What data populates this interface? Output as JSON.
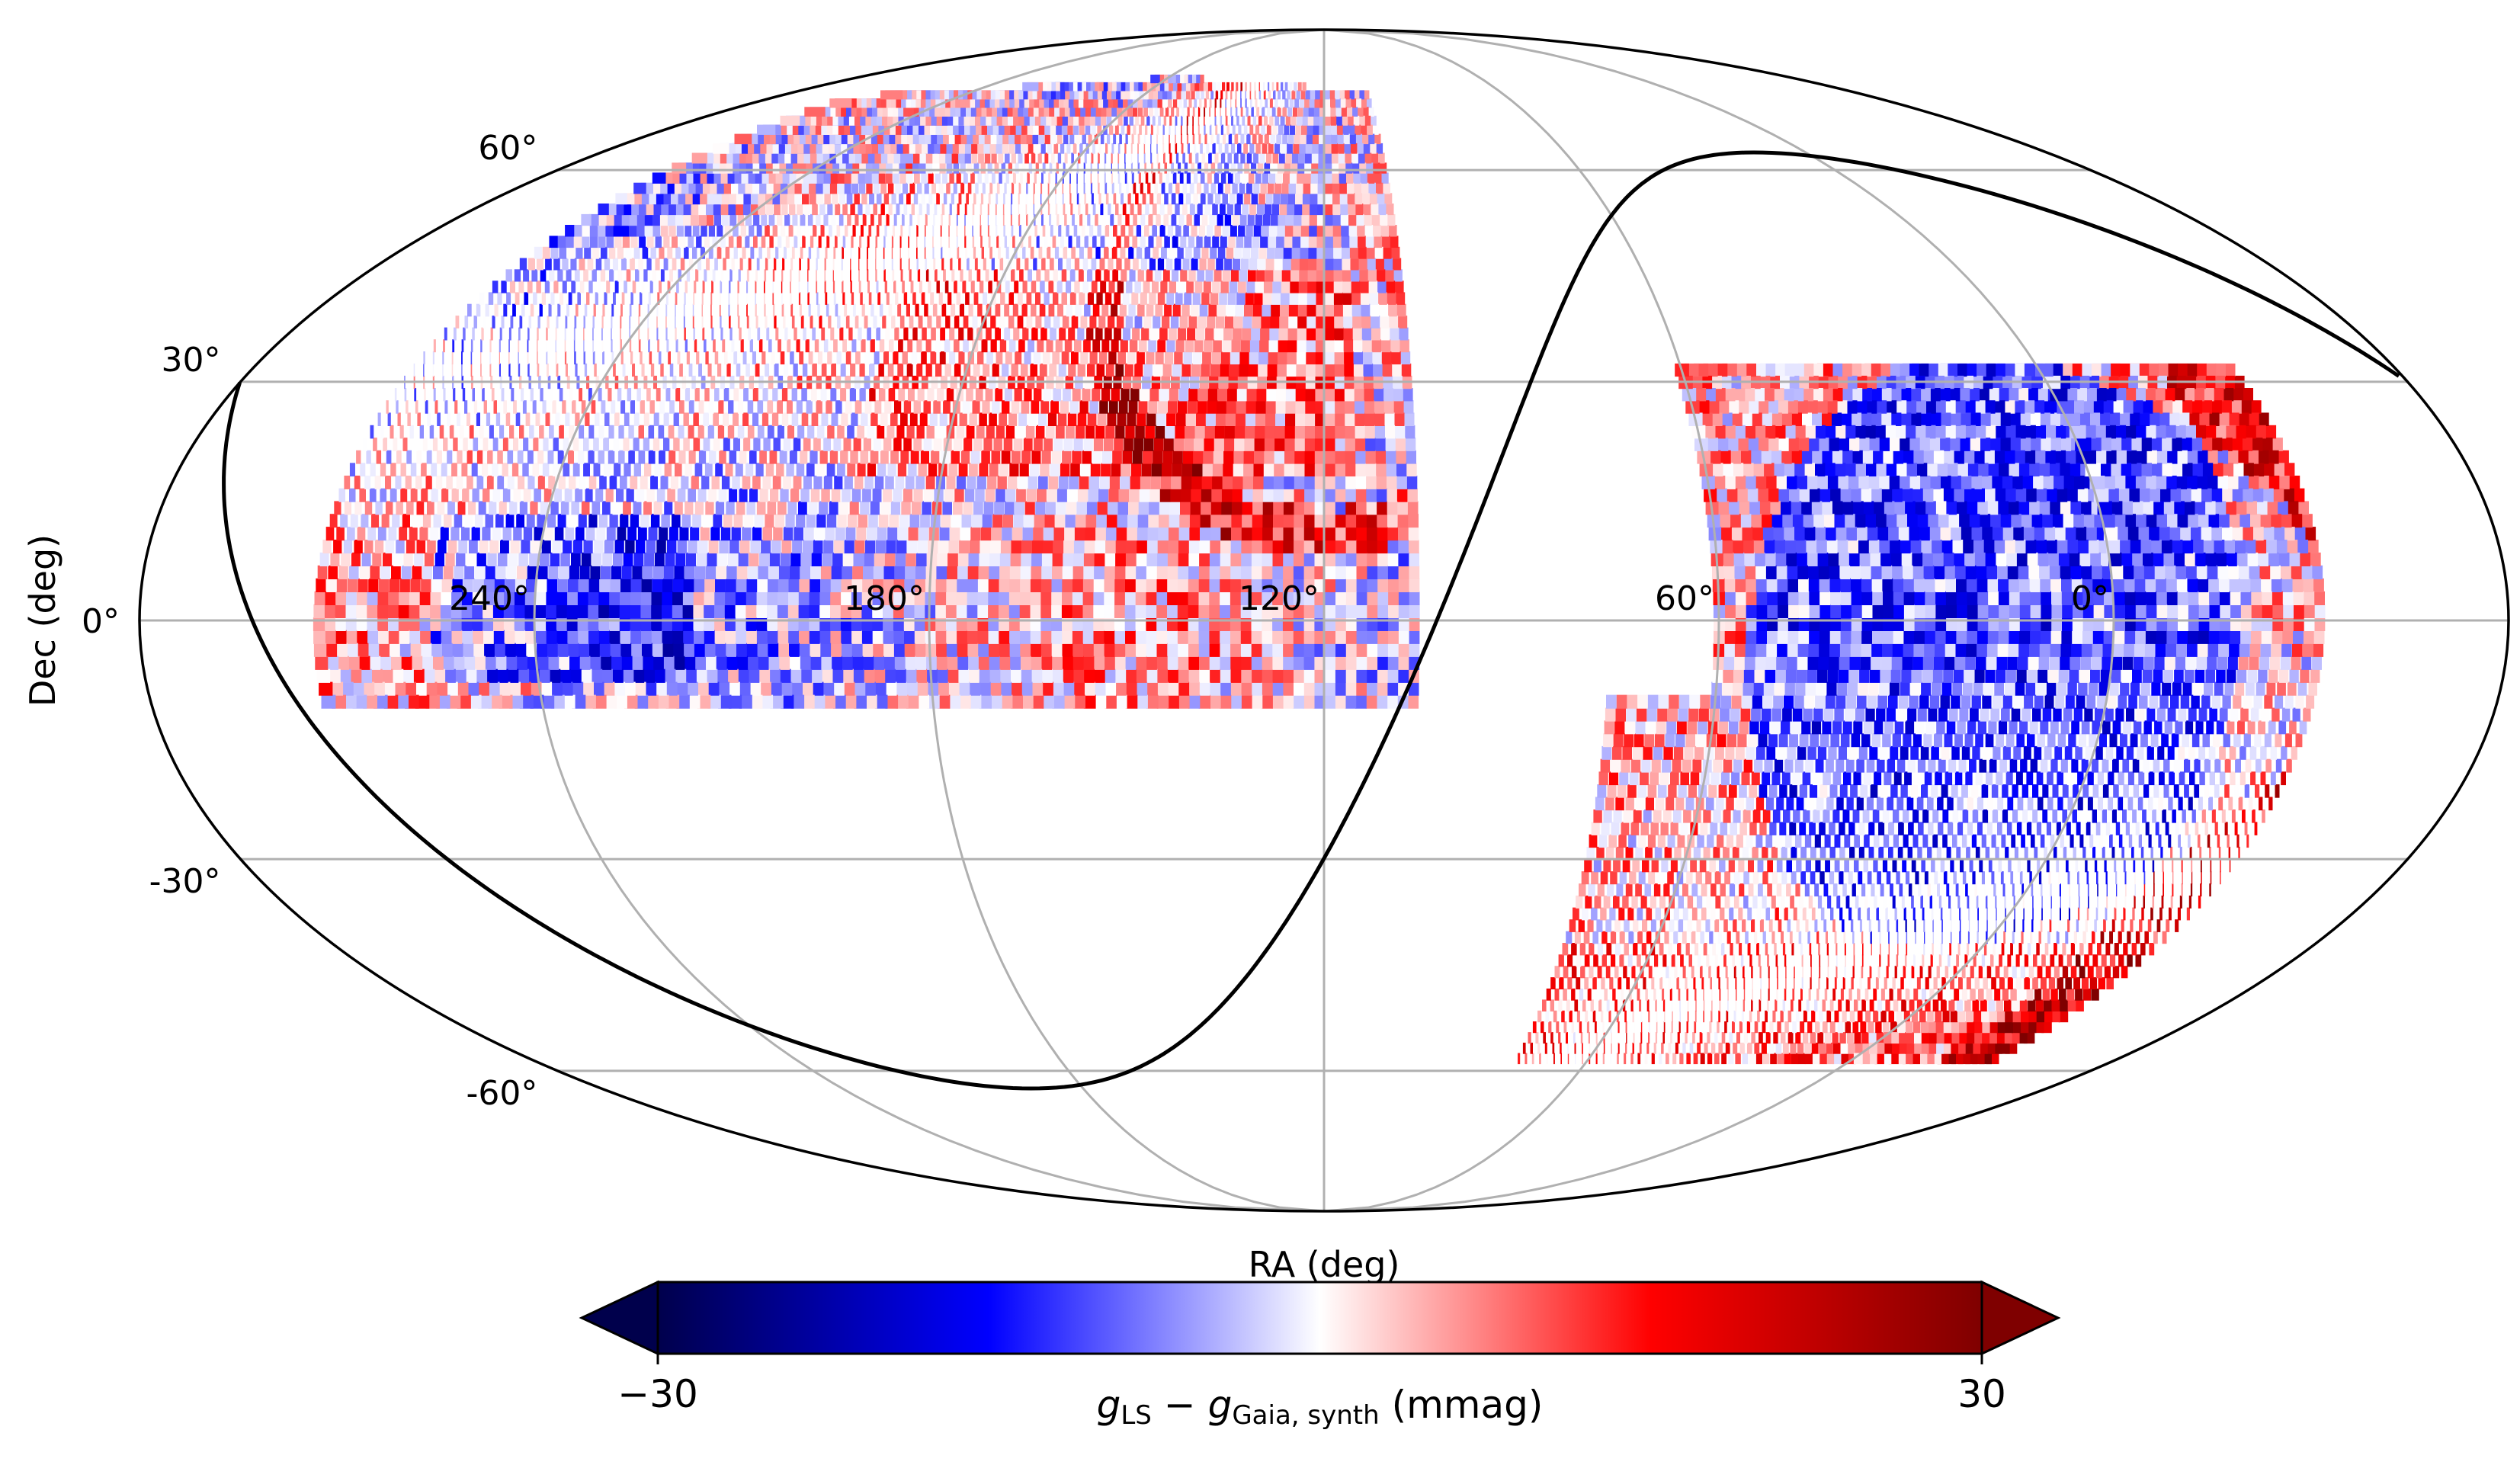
{
  "chart_data": {
    "type": "heatmap",
    "projection": "mollweide",
    "xlabel": "RA (deg)",
    "ylabel": "Dec (deg)",
    "ra_ticks": [
      "240°",
      "180°",
      "120°",
      "60°",
      "0°"
    ],
    "ra_tick_values": [
      240,
      180,
      120,
      60,
      0
    ],
    "dec_ticks": [
      "60°",
      "30°",
      "0°",
      "-30°",
      "-60°"
    ],
    "dec_tick_values": [
      60,
      30,
      0,
      -30,
      -60
    ],
    "ra_center": 120,
    "ra_increases_to_left": true,
    "grid": true,
    "galactic_plane_curve": true,
    "colorbar": {
      "label_parts": [
        "g",
        "LS",
        " − ",
        "g",
        "Gaia, synth",
        " (mmag)"
      ],
      "min": -30,
      "max": 30,
      "min_label": "−30",
      "max_label": "30",
      "extend": "both",
      "colormap": "seismic",
      "colors": [
        "#00004c",
        "#0000ff",
        "#ffffff",
        "#ff0000",
        "#7f0000"
      ]
    },
    "value_range_mmag": [
      -30,
      30
    ],
    "regions": [
      {
        "ra_range": [
          105,
          270
        ],
        "dec_range": [
          -12,
          75
        ],
        "pattern": "mixed, positive (red) arcs near RA 120–190"
      },
      {
        "ra_range": [
          -30,
          75
        ],
        "dec_range": [
          -60,
          32
        ],
        "pattern": "predominantly negative (blue) center, red edges"
      }
    ]
  }
}
